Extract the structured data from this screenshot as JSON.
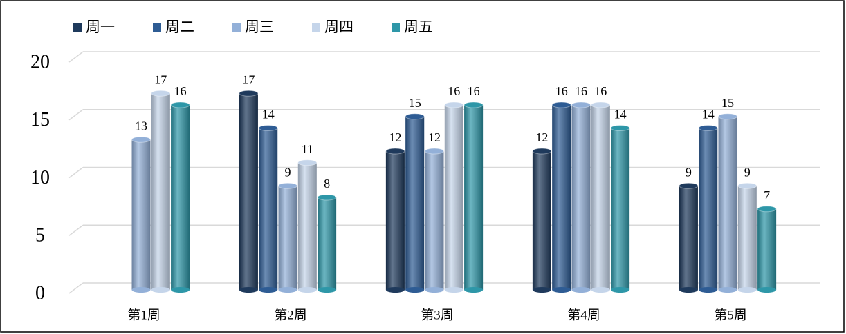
{
  "chart_data": {
    "type": "bar",
    "categories": [
      "第1周",
      "第2周",
      "第3周",
      "第4周",
      "第5周"
    ],
    "series": [
      {
        "name": "周一",
        "color": "#1f3a5c",
        "values": [
          null,
          17,
          12,
          12,
          9
        ]
      },
      {
        "name": "周二",
        "color": "#2e5c94",
        "values": [
          null,
          14,
          15,
          16,
          14
        ]
      },
      {
        "name": "周三",
        "color": "#93b0d8",
        "values": [
          13,
          9,
          12,
          16,
          15
        ]
      },
      {
        "name": "周四",
        "color": "#c5d5ea",
        "values": [
          17,
          11,
          16,
          16,
          9
        ]
      },
      {
        "name": "周五",
        "color": "#2e97a8",
        "values": [
          16,
          8,
          16,
          14,
          7
        ]
      }
    ],
    "ylim": [
      0,
      20
    ],
    "yticks": [
      0,
      5,
      10,
      15,
      20
    ],
    "grid": true,
    "legend": "top"
  }
}
